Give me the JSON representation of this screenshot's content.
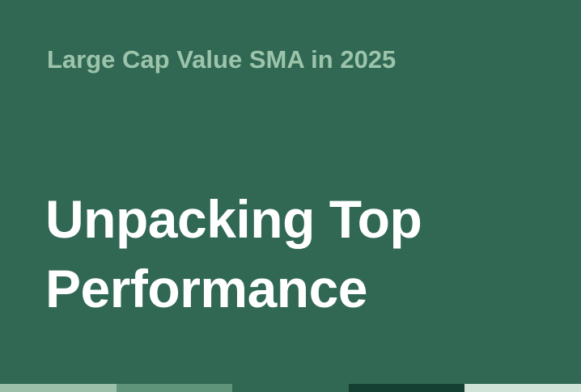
{
  "header": {
    "subtitle": "Large Cap Value SMA in 2025",
    "title_lines": [
      "Unpacking Top",
      "Performance"
    ]
  },
  "colors": {
    "background": "#306854",
    "subtitle": "#9cc4ab",
    "title": "#ffffff",
    "stripe": [
      "#9bbfa8",
      "#5f947a",
      "#306854",
      "#143f33",
      "#cfe3d6"
    ]
  }
}
